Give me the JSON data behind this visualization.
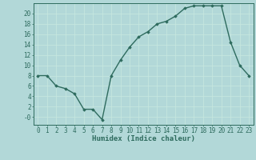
{
  "x": [
    0,
    1,
    2,
    3,
    4,
    5,
    6,
    7,
    8,
    9,
    10,
    11,
    12,
    13,
    14,
    15,
    16,
    17,
    18,
    19,
    20,
    21,
    22,
    23
  ],
  "y": [
    8,
    8,
    6,
    5.5,
    4.5,
    1.5,
    1.5,
    -0.5,
    8,
    11,
    13.5,
    15.5,
    16.5,
    18,
    18.5,
    19.5,
    21,
    21.5,
    21.5,
    21.5,
    21.5,
    14.5,
    10,
    8
  ],
  "line_color": "#2e6b5e",
  "marker": "D",
  "marker_size": 1.8,
  "bg_color": "#b2d8d8",
  "grid_color": "#c8e8e0",
  "xlabel": "Humidex (Indice chaleur)",
  "ylim": [
    -1.5,
    22
  ],
  "xlim": [
    -0.5,
    23.5
  ],
  "yticks": [
    0,
    2,
    4,
    6,
    8,
    10,
    12,
    14,
    16,
    18,
    20
  ],
  "ytick_labels": [
    "-0",
    "2",
    "4",
    "6",
    "8",
    "10",
    "12",
    "14",
    "16",
    "18",
    "20"
  ],
  "xticks": [
    0,
    1,
    2,
    3,
    4,
    5,
    6,
    7,
    8,
    9,
    10,
    11,
    12,
    13,
    14,
    15,
    16,
    17,
    18,
    19,
    20,
    21,
    22,
    23
  ],
  "xlabel_fontsize": 6.5,
  "tick_fontsize": 5.5,
  "linewidth": 1.0
}
